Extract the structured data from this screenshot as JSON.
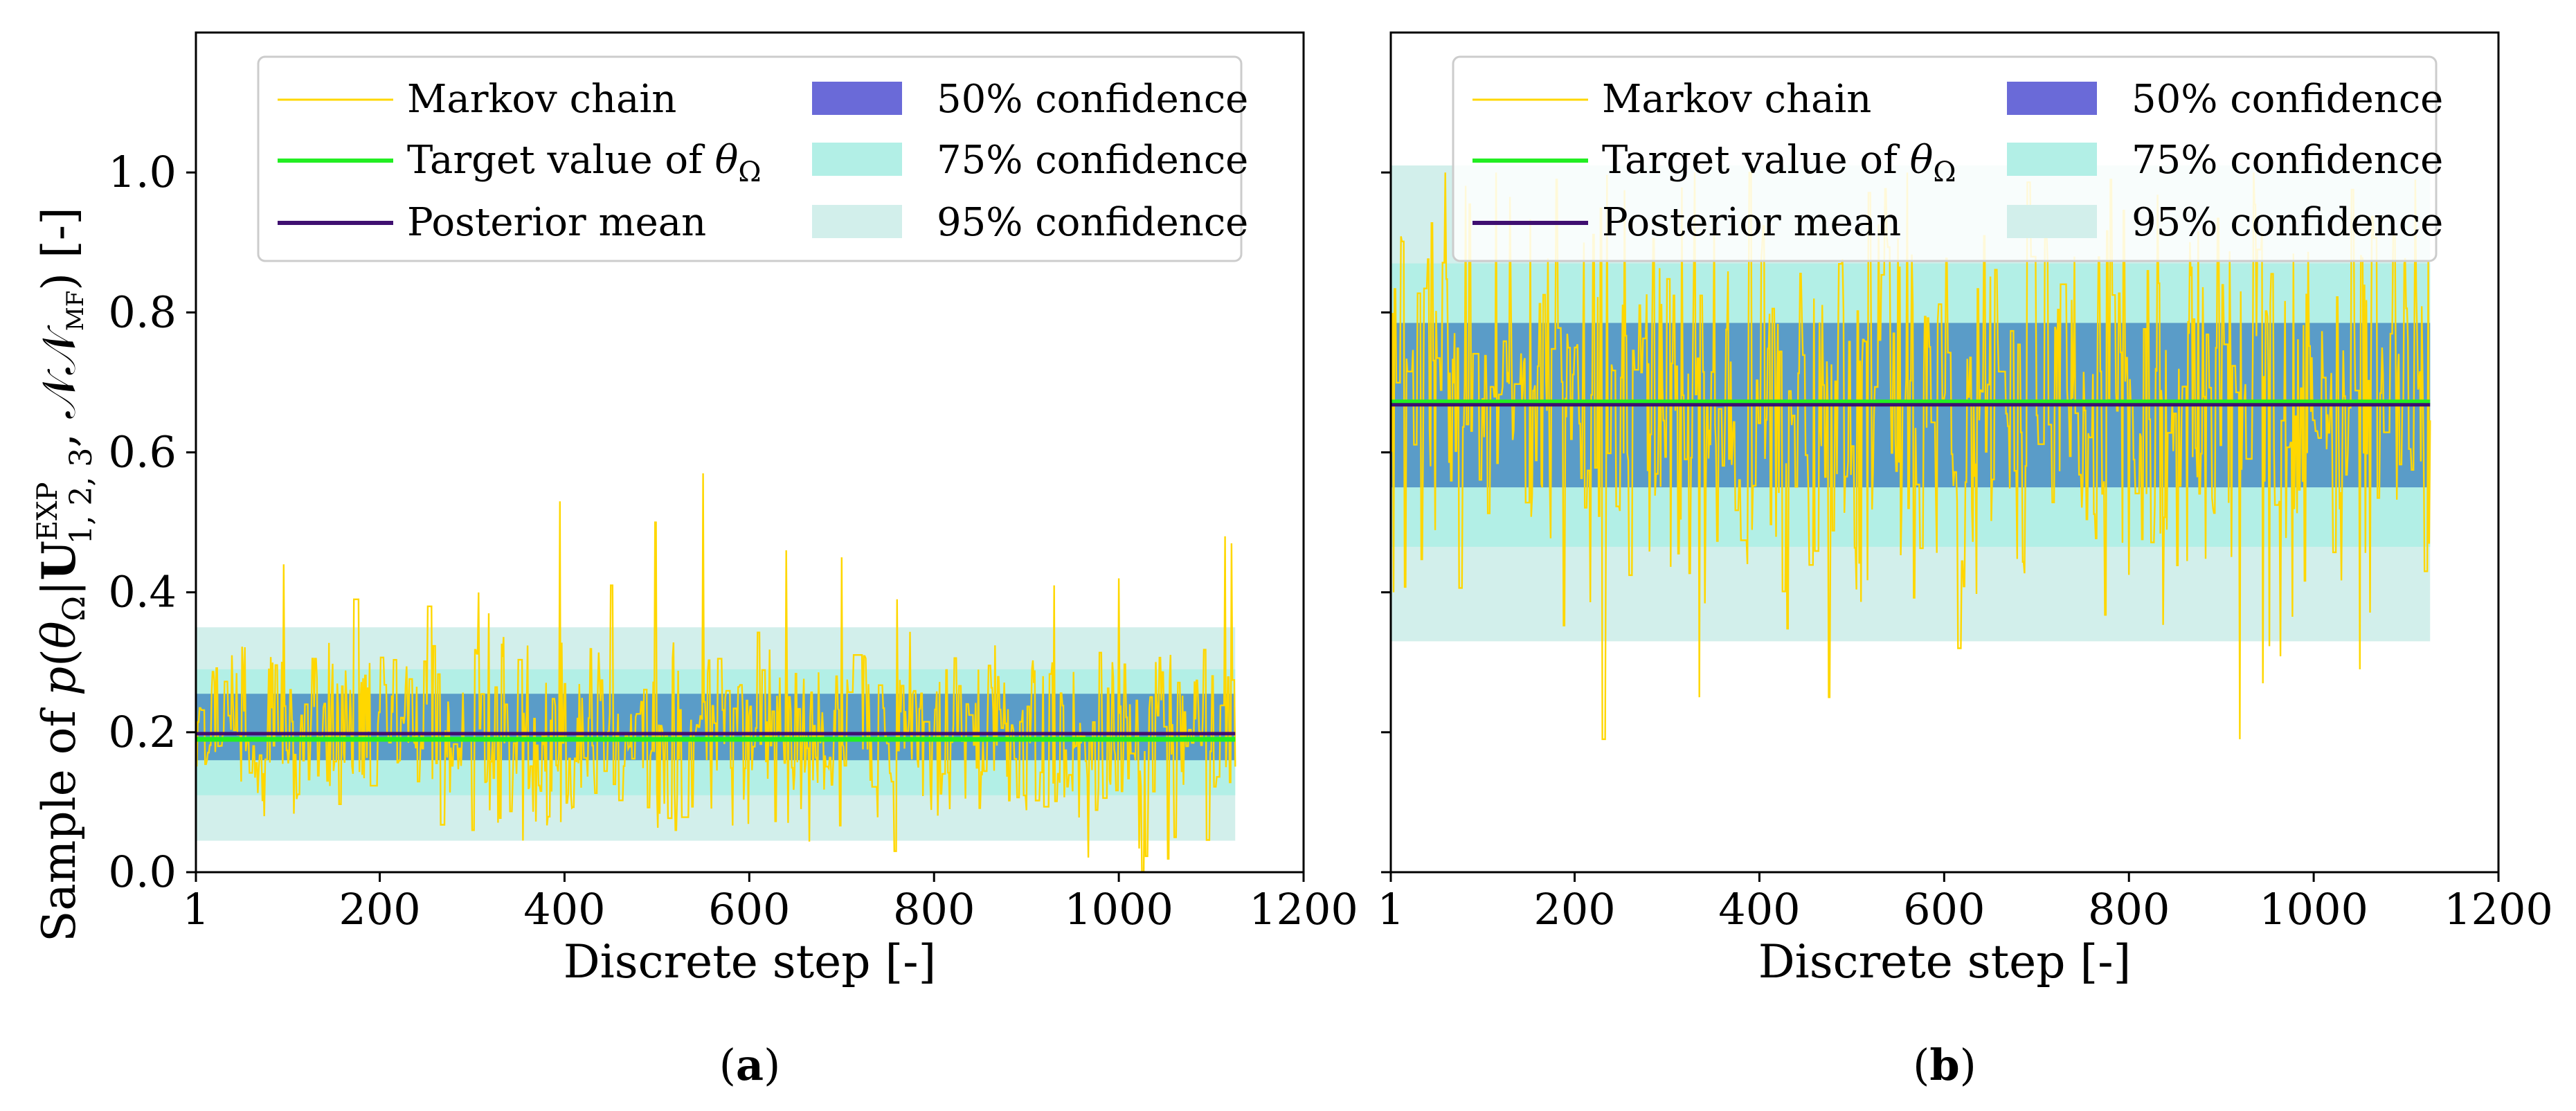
{
  "colors": {
    "chain": "#FFD700",
    "target": "#22EE22",
    "mean": "#3F0F70",
    "ci50": "#6A6AD8",
    "ci75": "#B2EFE6",
    "ci95": "#D2EFEB",
    "ci50_overlay": "#5A9CC8"
  },
  "shared": {
    "xlabel": "Discrete step [-]",
    "ylabel": "Sample of p(θΩ|U1,2,3EXP,𝒩𝒩MF) [-]",
    "ylabel_parts": {
      "prefix": "Sample of ",
      "p": "p",
      "open": "(",
      "theta": "θ",
      "omega": "Ω",
      "bar": "|",
      "U": "U",
      "sup": "EXP",
      "sub": "1, 2, 3",
      "comma": ", ",
      "nn": "𝒩𝒩",
      "nnsub": "MF",
      "close": ")",
      "unit": " [-]"
    },
    "xticks": [
      1,
      200,
      400,
      600,
      800,
      1000,
      1200
    ],
    "xtick_labels": [
      "1",
      "200",
      "400",
      "600",
      "800",
      "1000",
      "1200"
    ],
    "yticks": [
      0.0,
      0.2,
      0.4,
      0.6,
      0.8,
      1.0
    ],
    "ytick_labels": [
      "0.0",
      "0.2",
      "0.4",
      "0.6",
      "0.8",
      "1.0"
    ],
    "legend": {
      "chain": "Markov chain",
      "target_prefix": "Target value of ",
      "target_theta": "θ",
      "target_omega": "Ω",
      "mean": "Posterior mean",
      "ci50": "50% confidence",
      "ci75": "75% confidence",
      "ci95": "95% confidence"
    }
  },
  "chart_data": [
    {
      "type": "line",
      "panel_label": "(a)",
      "panel_letter": "a",
      "xlim": [
        1,
        1200
      ],
      "ylim": [
        0.0,
        1.2
      ],
      "n_steps": 1126,
      "chain_center": 0.195,
      "chain_spread": 0.07,
      "chain_min": 0.0,
      "chain_max": 0.57,
      "chain_peaks": [
        [
          40,
          0.31
        ],
        [
          96,
          0.44
        ],
        [
          172,
          0.39
        ],
        [
          252,
          0.38
        ],
        [
          318,
          0.37
        ],
        [
          395,
          0.53
        ],
        [
          450,
          0.41
        ],
        [
          498,
          0.5
        ],
        [
          550,
          0.57
        ],
        [
          640,
          0.46
        ],
        [
          700,
          0.45
        ],
        [
          760,
          0.39
        ],
        [
          930,
          0.41
        ],
        [
          1000,
          0.42
        ],
        [
          1115,
          0.48
        ],
        [
          1122,
          0.47
        ]
      ],
      "chain_troughs": [
        [
          75,
          0.08
        ],
        [
          300,
          0.06
        ],
        [
          520,
          0.06
        ],
        [
          757,
          0.03
        ],
        [
          1025,
          0.0
        ],
        [
          1060,
          0.05
        ]
      ],
      "target": 0.19,
      "posterior_mean": 0.198,
      "ci50": [
        0.16,
        0.255
      ],
      "ci75": [
        0.11,
        0.29
      ],
      "ci95": [
        0.045,
        0.35
      ],
      "band_x_range": [
        1,
        1126
      ],
      "grid": false,
      "legend_position": "upper-center"
    },
    {
      "type": "line",
      "panel_label": "(b)",
      "panel_letter": "b",
      "xlim": [
        1,
        1200
      ],
      "ylim": [
        0.0,
        1.2
      ],
      "n_steps": 1126,
      "chain_center": 0.67,
      "chain_spread": 0.14,
      "chain_min": 0.19,
      "chain_max": 1.0,
      "chain_peaks": [
        [
          60,
          1.0
        ],
        [
          180,
          0.99
        ],
        [
          330,
          1.0
        ],
        [
          560,
          1.0
        ],
        [
          780,
          0.99
        ],
        [
          1110,
          0.99
        ]
      ],
      "chain_troughs": [
        [
          230,
          0.19
        ],
        [
          335,
          0.25
        ],
        [
          475,
          0.25
        ],
        [
          615,
          0.32
        ],
        [
          920,
          0.19
        ],
        [
          945,
          0.27
        ],
        [
          1050,
          0.29
        ],
        [
          1120,
          0.43
        ]
      ],
      "target": 0.672,
      "posterior_mean": 0.668,
      "ci50": [
        0.55,
        0.785
      ],
      "ci75": [
        0.465,
        0.87
      ],
      "ci95": [
        0.33,
        1.01
      ],
      "band_x_range": [
        1,
        1126
      ],
      "grid": false,
      "legend_position": "upper-center"
    }
  ]
}
